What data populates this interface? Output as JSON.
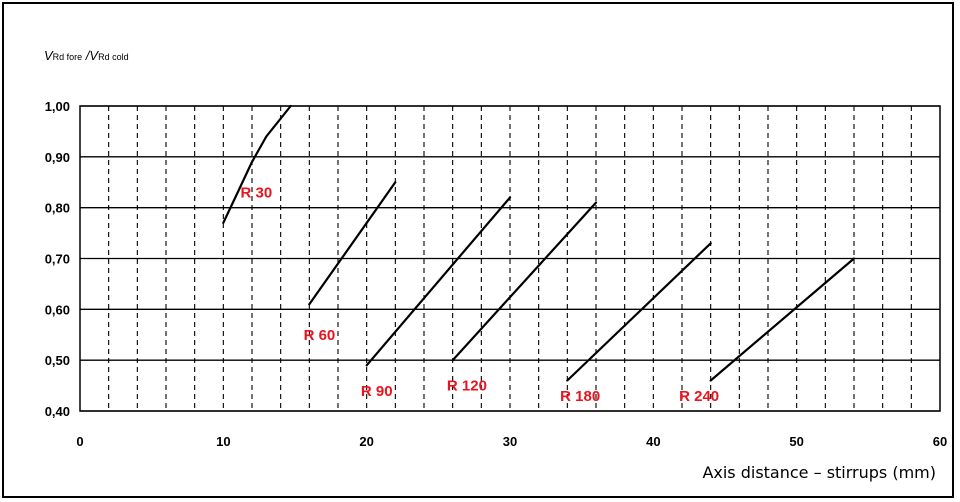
{
  "chart_data": {
    "type": "line",
    "ylabel": {
      "v1": "V",
      "s1": "Rd fore",
      "sep": " /",
      "v2": "V",
      "s2": "Rd cold"
    },
    "xlabel": "Axis distance – stirrups (mm)",
    "xlim": [
      0,
      60
    ],
    "ylim": [
      0.4,
      1.0
    ],
    "xticks": [
      0,
      10,
      20,
      30,
      40,
      50,
      60
    ],
    "xtick_labels": [
      "0",
      "10",
      "20",
      "30",
      "40",
      "50",
      "60"
    ],
    "yticks": [
      0.4,
      0.5,
      0.6,
      0.7,
      0.8,
      0.9,
      1.0
    ],
    "ytick_labels": [
      "0,40",
      "0,50",
      "0,60",
      "0,70",
      "0,80",
      "0,90",
      "1,00"
    ],
    "grid": {
      "horizontal": "solid",
      "vertical": "dashed",
      "vertical_step": 2
    },
    "label_color": "#e8141e",
    "line_color": "#000000",
    "series": [
      {
        "name": "R 30",
        "points": [
          [
            10,
            0.77
          ],
          [
            11,
            0.83
          ],
          [
            12,
            0.89
          ],
          [
            13,
            0.94
          ],
          [
            14.7,
            1.0
          ]
        ],
        "label_at": [
          11.2,
          0.82
        ]
      },
      {
        "name": "R 60",
        "points": [
          [
            16,
            0.61
          ],
          [
            22,
            0.85
          ]
        ],
        "label_at": [
          15.6,
          0.54
        ]
      },
      {
        "name": "R 90",
        "points": [
          [
            20,
            0.49
          ],
          [
            30,
            0.82
          ]
        ],
        "label_at": [
          19.6,
          0.43
        ]
      },
      {
        "name": "R 120",
        "points": [
          [
            26,
            0.5
          ],
          [
            36,
            0.81
          ]
        ],
        "label_at": [
          25.6,
          0.44
        ]
      },
      {
        "name": "R 180",
        "points": [
          [
            34,
            0.46
          ],
          [
            44,
            0.73
          ]
        ],
        "label_at": [
          33.5,
          0.42
        ]
      },
      {
        "name": "R 240",
        "points": [
          [
            44,
            0.46
          ],
          [
            54,
            0.7
          ]
        ],
        "label_at": [
          41.8,
          0.42
        ]
      }
    ]
  }
}
